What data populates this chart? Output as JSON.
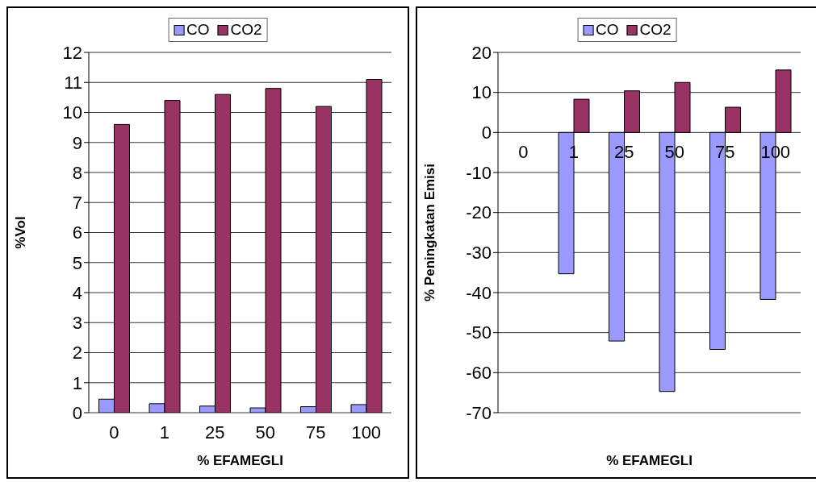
{
  "chart_data": [
    {
      "type": "bar",
      "ylabel": "%Vol",
      "xlabel": "% EFAMEGLI",
      "categories": [
        "0",
        "1",
        "25",
        "50",
        "75",
        "100"
      ],
      "series": [
        {
          "name": "CO",
          "color": "#9999ff",
          "values": [
            0.45,
            0.3,
            0.22,
            0.16,
            0.2,
            0.27
          ]
        },
        {
          "name": "CO2",
          "color": "#993366",
          "values": [
            9.6,
            10.4,
            10.6,
            10.8,
            10.2,
            11.1
          ]
        }
      ],
      "ylim": [
        0,
        12
      ],
      "yticks": [
        0,
        1,
        2,
        3,
        4,
        5,
        6,
        7,
        8,
        9,
        10,
        11,
        12
      ],
      "grid": "y",
      "legend": "top"
    },
    {
      "type": "bar",
      "ylabel": "% Peningkatan Emisi",
      "xlabel": "% EFAMEGLI",
      "categories": [
        "0",
        "1",
        "25",
        "50",
        "75",
        "100"
      ],
      "series": [
        {
          "name": "CO",
          "color": "#9999ff",
          "values": [
            0,
            -35.3,
            -52.1,
            -64.7,
            -54.2,
            -41.7
          ]
        },
        {
          "name": "CO2",
          "color": "#993366",
          "values": [
            0,
            8.3,
            10.4,
            12.5,
            6.3,
            15.6
          ]
        }
      ],
      "ylim": [
        -70,
        20
      ],
      "yticks": [
        -70,
        -60,
        -50,
        -40,
        -30,
        -20,
        -10,
        0,
        10,
        20
      ],
      "grid": "y",
      "legend": "top"
    }
  ]
}
